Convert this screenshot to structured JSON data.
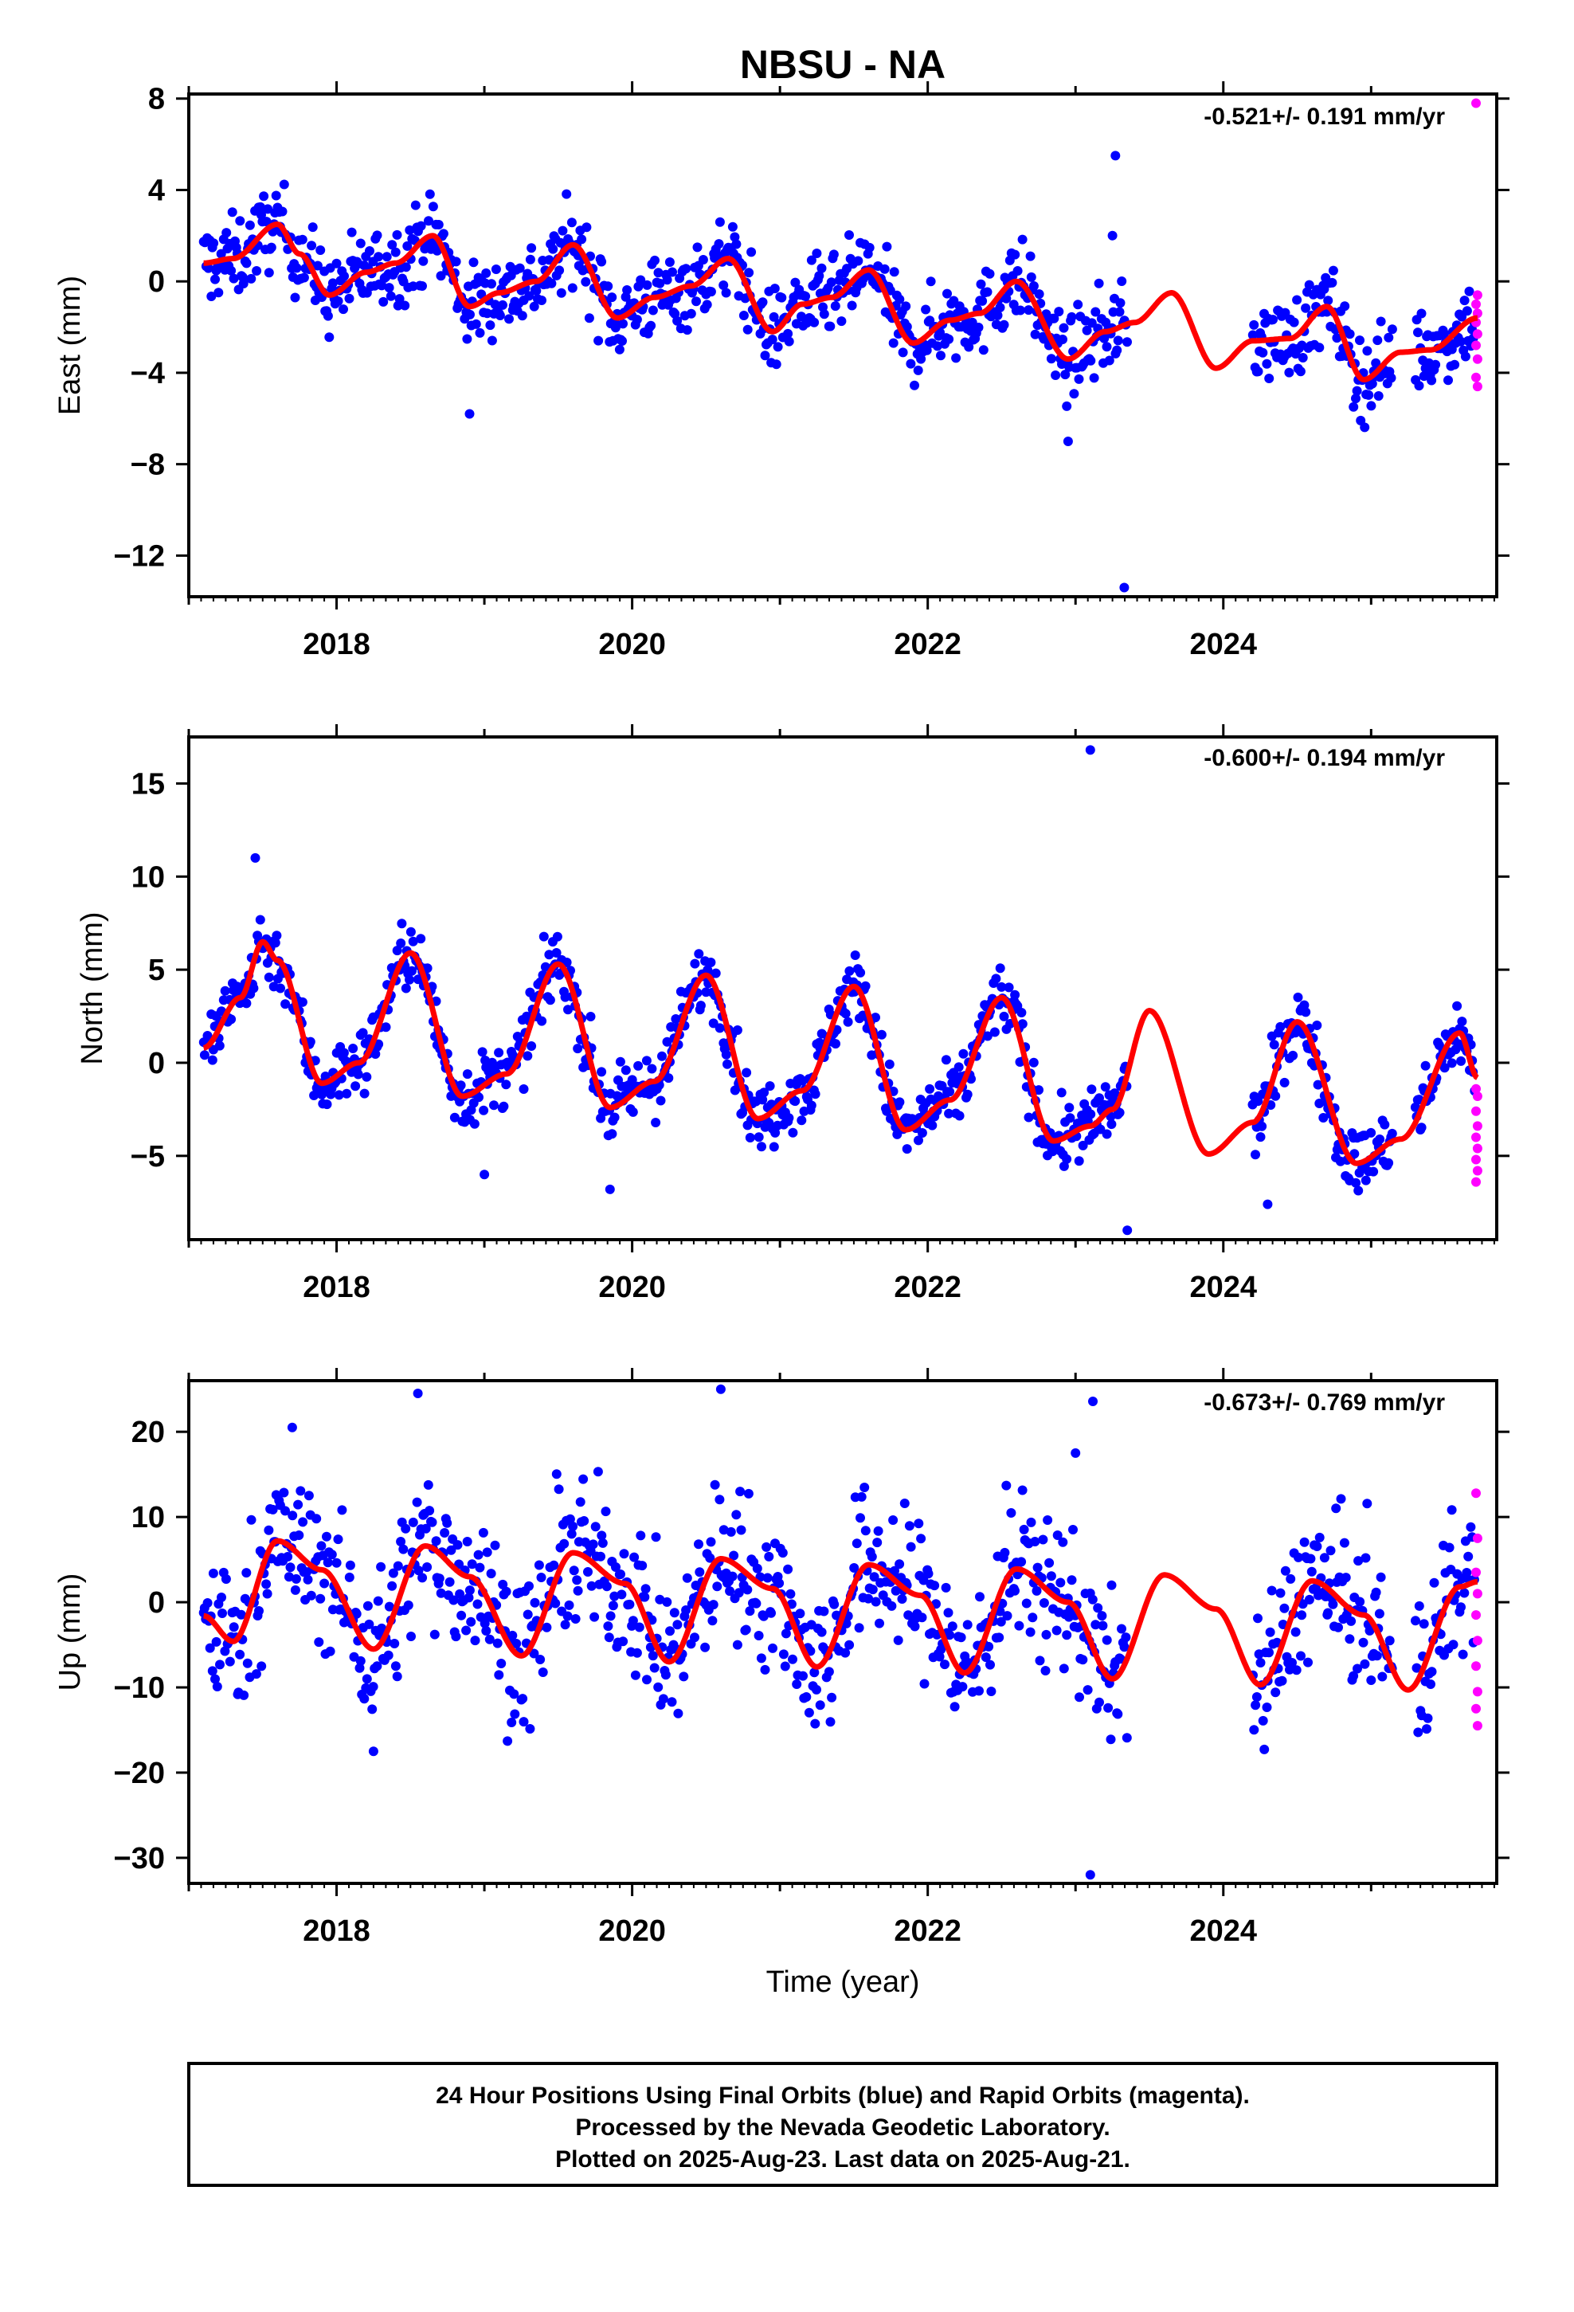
{
  "chart_title": "NBSU - NA",
  "xlabel": "Time (year)",
  "colors": {
    "final": "#0000ff",
    "rapid": "#ff00ff",
    "model": "#ff0000",
    "frame": "#000000"
  },
  "chart_data": [
    {
      "type": "scatter",
      "ylabel": "East (mm)",
      "rate_text": "-0.521+/- 0.191 mm/yr",
      "xlim": [
        2017.0,
        2025.85
      ],
      "ylim": [
        -13.8,
        8.2
      ],
      "x_ticks": [
        "2018",
        "2020",
        "2022",
        "2024"
      ],
      "x_tick_values": [
        2018,
        2020,
        2022,
        2024
      ],
      "y_ticks": [
        "8",
        "4",
        "0",
        "−4",
        "−8",
        "−12"
      ],
      "y_tick_values": [
        8,
        4,
        0,
        -4,
        -8,
        -12
      ],
      "series": [
        {
          "name": "Final Orbits",
          "segments": [
            [
              2017.1,
              2023.35
            ],
            [
              2024.2,
              2025.15
            ],
            [
              2025.3,
              2025.7
            ]
          ],
          "noise": 0.9
        },
        {
          "name": "Rapid Orbits",
          "x_range": [
            2025.71,
            2025.72
          ],
          "y": [
            7.8,
            -0.6,
            -1.0,
            -1.4,
            -1.8,
            -2.3,
            -2.8,
            -3.4,
            -4.2,
            -4.6
          ]
        }
      ],
      "outliers": [
        [
          2023.27,
          5.5
        ],
        [
          2023.25,
          2.0
        ],
        [
          2023.33,
          -13.4
        ],
        [
          2018.9,
          -5.8
        ],
        [
          2022.95,
          -7.0
        ]
      ],
      "model": {
        "x": [
          2017.1,
          2017.3,
          2017.6,
          2017.75,
          2017.95,
          2018.2,
          2018.4,
          2018.65,
          2018.9,
          2019.1,
          2019.35,
          2019.6,
          2019.9,
          2020.15,
          2020.4,
          2020.65,
          2020.95,
          2021.15,
          2021.35,
          2021.6,
          2021.9,
          2022.15,
          2022.35,
          2022.6,
          2022.95,
          2023.2,
          2023.4,
          2023.65,
          2023.95,
          2024.2,
          2024.45,
          2024.7,
          2024.95,
          2025.2,
          2025.4,
          2025.72
        ],
        "y": [
          0.8,
          1.0,
          2.5,
          1.2,
          -0.6,
          0.4,
          0.8,
          2.0,
          -1.1,
          -0.5,
          0.0,
          1.6,
          -1.6,
          -0.7,
          -0.2,
          1.0,
          -2.2,
          -1.0,
          -0.7,
          0.5,
          -2.7,
          -1.7,
          -1.4,
          0.0,
          -3.4,
          -2.2,
          -1.8,
          -0.5,
          -3.8,
          -2.6,
          -2.5,
          -1.1,
          -4.3,
          -3.1,
          -3.0,
          -1.6
        ]
      }
    },
    {
      "type": "scatter",
      "ylabel": "North (mm)",
      "rate_text": "-0.600+/- 0.194 mm/yr",
      "xlim": [
        2017.0,
        2025.85
      ],
      "ylim": [
        -9.5,
        17.5
      ],
      "x_ticks": [
        "2018",
        "2020",
        "2022",
        "2024"
      ],
      "x_tick_values": [
        2018,
        2020,
        2022,
        2024
      ],
      "y_ticks": [
        "15",
        "10",
        "5",
        "0",
        "−5"
      ],
      "y_tick_values": [
        15,
        10,
        5,
        0,
        -5
      ],
      "series": [
        {
          "name": "Final Orbits",
          "segments": [
            [
              2017.1,
              2023.35
            ],
            [
              2024.2,
              2025.15
            ],
            [
              2025.3,
              2025.7
            ]
          ],
          "noise": 0.9
        },
        {
          "name": "Rapid Orbits",
          "x_range": [
            2025.71,
            2025.72
          ],
          "y": [
            -1.4,
            -1.8,
            -2.6,
            -3.4,
            -4.0,
            -4.6,
            -5.2,
            -5.8,
            -6.4
          ]
        }
      ],
      "outliers": [
        [
          2023.1,
          16.8
        ],
        [
          2017.45,
          11.0
        ],
        [
          2023.35,
          -9.0
        ],
        [
          2019.0,
          -6.0
        ],
        [
          2019.85,
          -6.8
        ],
        [
          2024.3,
          -7.6
        ]
      ],
      "model": {
        "x": [
          2017.1,
          2017.35,
          2017.5,
          2017.6,
          2017.9,
          2018.15,
          2018.5,
          2018.85,
          2019.15,
          2019.5,
          2019.85,
          2020.15,
          2020.5,
          2020.85,
          2021.15,
          2021.5,
          2021.85,
          2022.15,
          2022.5,
          2022.85,
          2023.1,
          2023.25,
          2023.5,
          2023.9,
          2024.2,
          2024.5,
          2024.9,
          2025.2,
          2025.6,
          2025.72
        ],
        "y": [
          0.8,
          3.5,
          6.5,
          5.5,
          -1.1,
          0.0,
          5.9,
          -1.8,
          -0.6,
          5.3,
          -2.4,
          -1.0,
          4.7,
          -3.0,
          -1.5,
          4.1,
          -3.6,
          -2.0,
          3.5,
          -4.2,
          -3.4,
          -2.5,
          2.8,
          -4.9,
          -3.2,
          2.2,
          -5.4,
          -4.1,
          1.6,
          -0.8
        ]
      }
    },
    {
      "type": "scatter",
      "ylabel": "Up (mm)",
      "rate_text": "-0.673+/- 0.769 mm/yr",
      "legend_marker": "final",
      "xlim": [
        2017.0,
        2025.85
      ],
      "ylim": [
        -33,
        26
      ],
      "x_ticks": [
        "2018",
        "2020",
        "2022",
        "2024"
      ],
      "x_tick_values": [
        2018,
        2020,
        2022,
        2024
      ],
      "y_ticks": [
        "20",
        "10",
        "0",
        "−10",
        "−20",
        "−30"
      ],
      "y_tick_values": [
        20,
        10,
        0,
        -10,
        -20,
        -30
      ],
      "series": [
        {
          "name": "Final Orbits",
          "segments": [
            [
              2017.1,
              2023.35
            ],
            [
              2024.2,
              2025.15
            ],
            [
              2025.3,
              2025.7
            ]
          ],
          "noise": 4.5
        },
        {
          "name": "Rapid Orbits",
          "x_range": [
            2025.71,
            2025.72
          ],
          "y": [
            12.8,
            7.5,
            3.5,
            1.0,
            -1.5,
            -4.5,
            -7.5,
            -10.5,
            -12.5,
            -14.5
          ]
        }
      ],
      "outliers": [
        [
          2018.55,
          24.5
        ],
        [
          2020.6,
          25.0
        ],
        [
          2023.1,
          -32.0
        ],
        [
          2023.0,
          17.5
        ],
        [
          2017.7,
          20.5
        ],
        [
          2018.25,
          -17.5
        ]
      ],
      "model": {
        "x": [
          2017.1,
          2017.3,
          2017.6,
          2017.9,
          2018.25,
          2018.6,
          2018.9,
          2019.25,
          2019.6,
          2019.95,
          2020.25,
          2020.6,
          2020.95,
          2021.25,
          2021.6,
          2021.95,
          2022.25,
          2022.6,
          2022.95,
          2023.25,
          2023.6,
          2023.95,
          2024.25,
          2024.6,
          2024.95,
          2025.25,
          2025.6,
          2025.72
        ],
        "y": [
          -1.6,
          -4.6,
          7.2,
          3.8,
          -5.5,
          6.6,
          3.0,
          -6.3,
          5.8,
          2.2,
          -7.0,
          5.1,
          1.6,
          -7.6,
          4.4,
          0.8,
          -8.3,
          3.9,
          0.0,
          -9.0,
          3.2,
          -0.8,
          -9.7,
          2.5,
          -1.5,
          -10.3,
          1.8,
          2.4
        ]
      }
    }
  ],
  "footer": {
    "line1": "24 Hour Positions Using Final Orbits (blue) and Rapid Orbits (magenta).",
    "line2": "Processed by the Nevada Geodetic Laboratory.",
    "line3": "Plotted on 2025-Aug-23. Last data on 2025-Aug-21."
  }
}
